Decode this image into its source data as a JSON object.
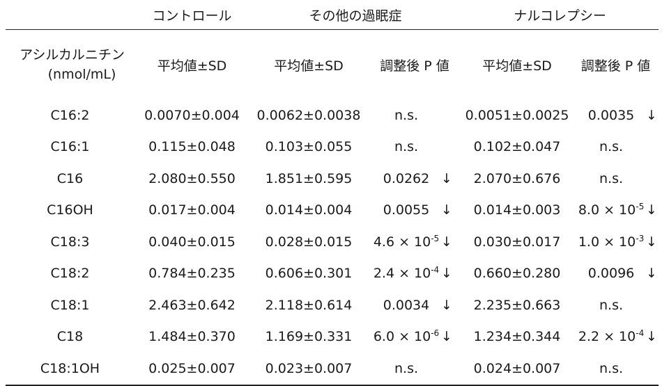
{
  "groups": {
    "control": "コントロール",
    "other": "その他の過眠症",
    "narcolepsy": "ナルコレプシー"
  },
  "subheaders": {
    "acyl_line1": "アシルカルニチン",
    "acyl_line2": "(nmol/mL)",
    "mean_sd": "平均値±SD",
    "adjusted_p": "調整後 P 値"
  },
  "rows": [
    {
      "name": "C16:2",
      "control": "0.0070±0.004",
      "other_mean": "0.0062±0.0038",
      "other_p": "n.s.",
      "other_p_mant": "",
      "other_p_exp": "",
      "other_arrow": "",
      "narco_mean": "0.0051±0.0025",
      "narco_p": "0.0035",
      "narco_p_mant": "",
      "narco_p_exp": "",
      "narco_arrow": "↓"
    },
    {
      "name": "C16:1",
      "control": "0.115±0.048",
      "other_mean": "0.103±0.055",
      "other_p": "n.s.",
      "other_p_mant": "",
      "other_p_exp": "",
      "other_arrow": "",
      "narco_mean": "0.102±0.047",
      "narco_p": "n.s.",
      "narco_p_mant": "",
      "narco_p_exp": "",
      "narco_arrow": ""
    },
    {
      "name": "C16",
      "control": "2.080±0.550",
      "other_mean": "1.851±0.595",
      "other_p": "0.0262",
      "other_p_mant": "",
      "other_p_exp": "",
      "other_arrow": "↓",
      "narco_mean": "2.070±0.676",
      "narco_p": "n.s.",
      "narco_p_mant": "",
      "narco_p_exp": "",
      "narco_arrow": ""
    },
    {
      "name": "C16OH",
      "control": "0.017±0.004",
      "other_mean": "0.014±0.004",
      "other_p": "0.0055",
      "other_p_mant": "",
      "other_p_exp": "",
      "other_arrow": "↓",
      "narco_mean": "0.014±0.003",
      "narco_p": "",
      "narco_p_mant": "8.0 × 10",
      "narco_p_exp": "-5",
      "narco_arrow": "↓"
    },
    {
      "name": "C18:3",
      "control": "0.040±0.015",
      "other_mean": "0.028±0.015",
      "other_p": "",
      "other_p_mant": "4.6 × 10",
      "other_p_exp": "-5",
      "other_arrow": "↓",
      "narco_mean": "0.030±0.017",
      "narco_p": "",
      "narco_p_mant": "1.0 × 10",
      "narco_p_exp": "-3",
      "narco_arrow": "↓"
    },
    {
      "name": "C18:2",
      "control": "0.784±0.235",
      "other_mean": "0.606±0.301",
      "other_p": "",
      "other_p_mant": "2.4 × 10",
      "other_p_exp": "-4",
      "other_arrow": "↓",
      "narco_mean": "0.660±0.280",
      "narco_p": "0.0096",
      "narco_p_mant": "",
      "narco_p_exp": "",
      "narco_arrow": "↓"
    },
    {
      "name": "C18:1",
      "control": "2.463±0.642",
      "other_mean": "2.118±0.614",
      "other_p": "0.0034",
      "other_p_mant": "",
      "other_p_exp": "",
      "other_arrow": "↓",
      "narco_mean": "2.235±0.663",
      "narco_p": "n.s.",
      "narco_p_mant": "",
      "narco_p_exp": "",
      "narco_arrow": ""
    },
    {
      "name": "C18",
      "control": "1.484±0.370",
      "other_mean": "1.169±0.331",
      "other_p": "",
      "other_p_mant": "6.0 × 10",
      "other_p_exp": "-6",
      "other_arrow": "↓",
      "narco_mean": "1.234±0.344",
      "narco_p": "",
      "narco_p_mant": "2.2 × 10",
      "narco_p_exp": "-4",
      "narco_arrow": "↓"
    },
    {
      "name": "C18:1OH",
      "control": "0.025±0.007",
      "other_mean": "0.023±0.007",
      "other_p": "n.s.",
      "other_p_mant": "",
      "other_p_exp": "",
      "other_arrow": "",
      "narco_mean": "0.024±0.007",
      "narco_p": "n.s.",
      "narco_p_mant": "",
      "narco_p_exp": "",
      "narco_arrow": ""
    }
  ]
}
